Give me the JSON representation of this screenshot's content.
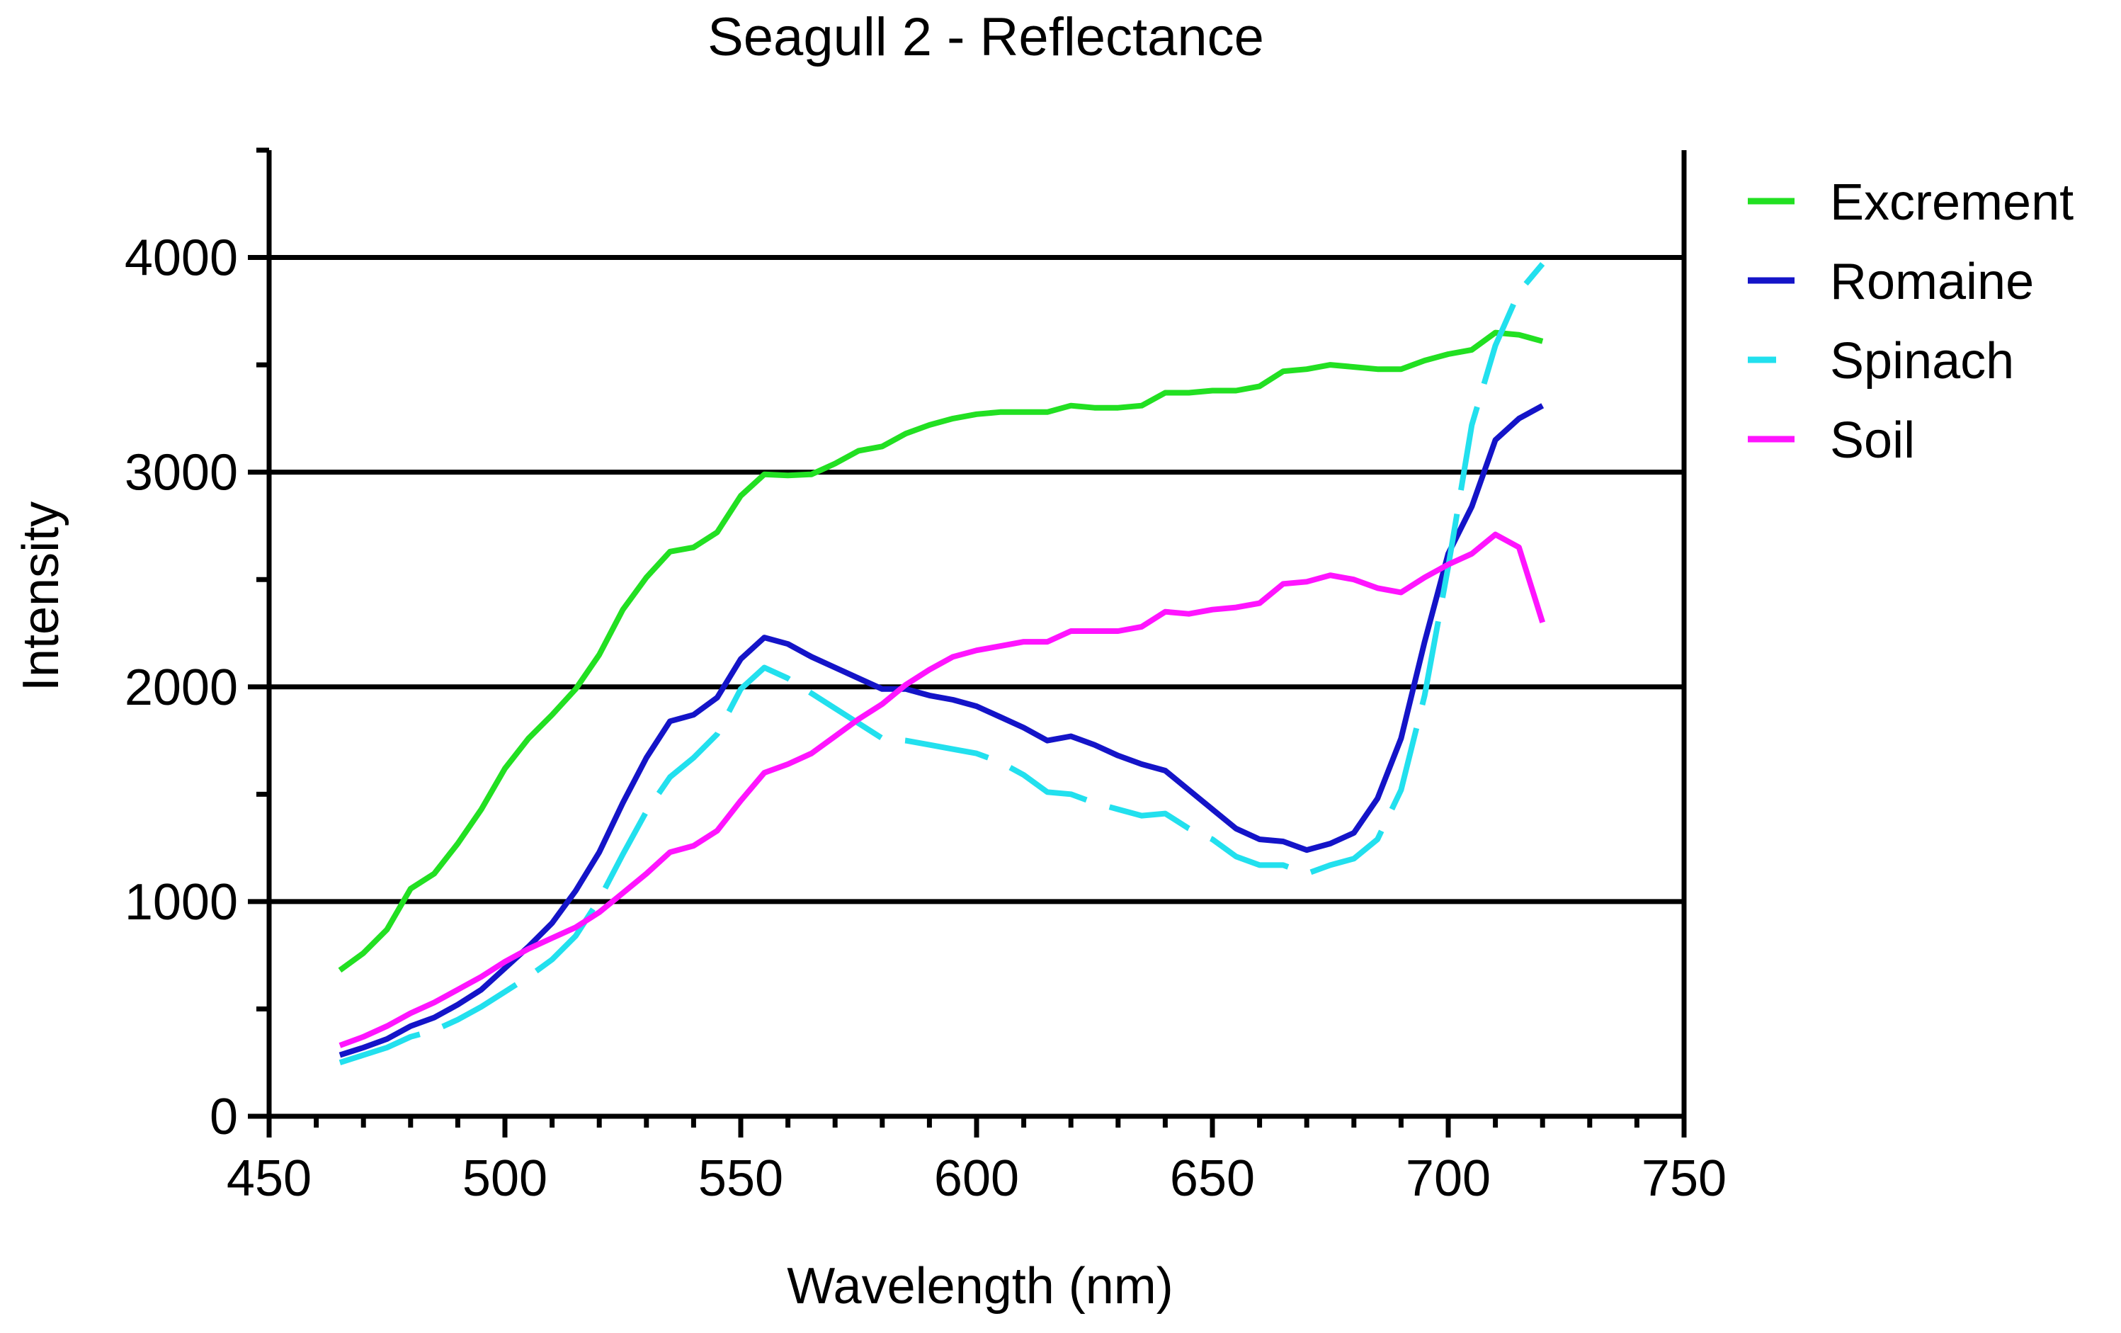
{
  "chart_data": {
    "type": "line",
    "title": "Seagull 2 - Reflectance",
    "xlabel": "Wavelength (nm)",
    "ylabel": "Intensity",
    "xlim": [
      450,
      750
    ],
    "ylim": [
      0,
      4500
    ],
    "xticks": [
      450,
      500,
      550,
      600,
      650,
      700,
      750
    ],
    "xtick_labels": [
      "450",
      "500",
      "550",
      "600",
      "650",
      "700",
      "750"
    ],
    "yticks": [
      0,
      1000,
      2000,
      3000,
      4000
    ],
    "ytick_labels": [
      "0",
      "1000",
      "2000",
      "3000",
      "4000"
    ],
    "grid": "horizontal",
    "legend_position": "right",
    "x": [
      465,
      470,
      475,
      480,
      485,
      490,
      495,
      500,
      505,
      510,
      515,
      520,
      525,
      530,
      535,
      540,
      545,
      550,
      555,
      560,
      565,
      570,
      575,
      580,
      585,
      590,
      595,
      600,
      605,
      610,
      615,
      620,
      625,
      630,
      635,
      640,
      645,
      650,
      655,
      660,
      665,
      670,
      675,
      680,
      685,
      690,
      695,
      700,
      705,
      710,
      715,
      720
    ],
    "series": [
      {
        "name": "Excrement",
        "color": "#22e022",
        "dash": "solid",
        "values": [
          680,
          760,
          870,
          1060,
          1130,
          1270,
          1430,
          1620,
          1760,
          1870,
          1990,
          2150,
          2360,
          2510,
          2630,
          2650,
          2720,
          2890,
          2990,
          2985,
          2990,
          3040,
          3100,
          3120,
          3180,
          3220,
          3250,
          3270,
          3280,
          3280,
          3280,
          3310,
          3300,
          3300,
          3310,
          3370,
          3370,
          3380,
          3380,
          3400,
          3470,
          3480,
          3500,
          3490,
          3480,
          3480,
          3520,
          3550,
          3570,
          3650,
          3640,
          3610
        ]
      },
      {
        "name": "Romaine",
        "color": "#1414c8",
        "dash": "solid",
        "values": [
          285,
          320,
          360,
          420,
          460,
          520,
          590,
          690,
          790,
          900,
          1050,
          1230,
          1460,
          1670,
          1840,
          1870,
          1950,
          2130,
          2230,
          2200,
          2140,
          2090,
          2040,
          1990,
          1990,
          1960,
          1940,
          1910,
          1860,
          1810,
          1750,
          1770,
          1730,
          1680,
          1640,
          1610,
          1520,
          1430,
          1340,
          1290,
          1280,
          1240,
          1270,
          1320,
          1480,
          1760,
          2210,
          2620,
          2840,
          3150,
          3250,
          3310
        ]
      },
      {
        "name": "Spinach",
        "color": "#22e0ee",
        "dash": "dashed-long",
        "values": [
          250,
          285,
          320,
          370,
          400,
          450,
          510,
          580,
          650,
          730,
          840,
          1010,
          1220,
          1420,
          1580,
          1670,
          1780,
          1990,
          2090,
          2040,
          1970,
          1900,
          1830,
          1760,
          1750,
          1730,
          1710,
          1690,
          1650,
          1590,
          1510,
          1500,
          1460,
          1430,
          1400,
          1410,
          1340,
          1290,
          1210,
          1170,
          1170,
          1130,
          1170,
          1200,
          1290,
          1520,
          1960,
          2560,
          3220,
          3590,
          3840,
          3970
        ]
      },
      {
        "name": "Soil",
        "color": "#ff14ff",
        "dash": "solid",
        "values": [
          330,
          370,
          420,
          480,
          530,
          590,
          650,
          720,
          780,
          830,
          880,
          950,
          1040,
          1130,
          1230,
          1260,
          1330,
          1470,
          1600,
          1640,
          1690,
          1770,
          1850,
          1920,
          2010,
          2080,
          2140,
          2170,
          2190,
          2210,
          2210,
          2260,
          2260,
          2260,
          2280,
          2350,
          2340,
          2360,
          2370,
          2390,
          2480,
          2490,
          2520,
          2500,
          2460,
          2440,
          2510,
          2570,
          2620,
          2710,
          2650,
          2300
        ]
      }
    ]
  }
}
